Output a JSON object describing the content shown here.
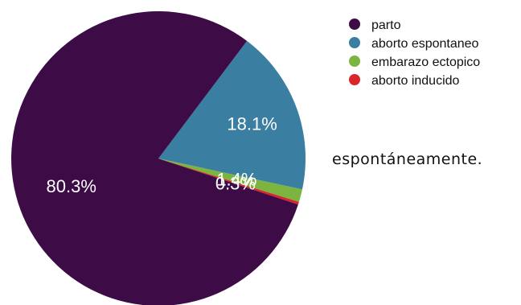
{
  "chart_data": {
    "type": "pie",
    "title": "",
    "legend_position": "top-right",
    "slices": [
      {
        "label": "parto",
        "value": 80.3,
        "display": "80.3%",
        "color": "#3d0b45"
      },
      {
        "label": "aborto espontaneo",
        "value": 18.1,
        "display": "18.1%",
        "color": "#3a7ea1"
      },
      {
        "label": "embarazo ectopico",
        "value": 1.4,
        "display": "1.4%",
        "color": "#7bb540"
      },
      {
        "label": "aborto inducido",
        "value": 0.3,
        "display": "0.3%",
        "color": "#d9262b"
      }
    ]
  },
  "side_text": "espontáneamente."
}
